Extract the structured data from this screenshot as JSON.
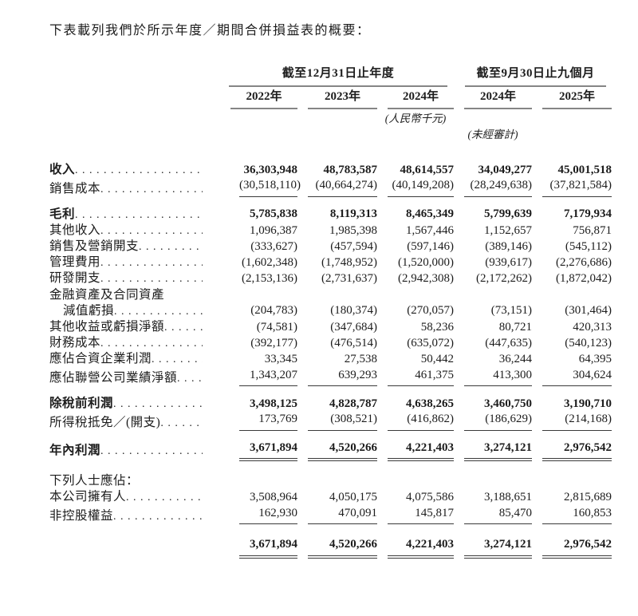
{
  "intro": "下表載列我們於所示年度／期間合併損益表的概要：",
  "table": {
    "col_groups": [
      {
        "label": "截至12月31日止年度",
        "span": 3
      },
      {
        "label": "截至9月30日止九個月",
        "span": 2
      }
    ],
    "year_headers": [
      "2022年",
      "2023年",
      "2024年",
      "2024年",
      "2025年"
    ],
    "notes": {
      "currency": "(人民幣千元)",
      "unaudited": "(未經審計)"
    },
    "rows": [
      {
        "label": "收入",
        "bold": true,
        "values": [
          "36,303,948",
          "48,783,587",
          "48,614,557",
          "34,049,277",
          "45,001,518"
        ]
      },
      {
        "label": "銷售成本",
        "rule": "single",
        "values": [
          "(30,518,110)",
          "(40,664,274)",
          "(40,149,208)",
          "(28,249,638)",
          "(37,821,584)"
        ]
      },
      {
        "label": "毛利",
        "bold": true,
        "values": [
          "5,785,838",
          "8,119,313",
          "8,465,349",
          "5,799,639",
          "7,179,934"
        ]
      },
      {
        "label": "其他收入",
        "values": [
          "1,096,387",
          "1,985,398",
          "1,567,446",
          "1,152,657",
          "756,871"
        ]
      },
      {
        "label": "銷售及營銷開支",
        "values": [
          "(333,627)",
          "(457,594)",
          "(597,146)",
          "(389,146)",
          "(545,112)"
        ]
      },
      {
        "label": "管理費用",
        "values": [
          "(1,602,348)",
          "(1,748,952)",
          "(1,520,000)",
          "(939,617)",
          "(2,276,686)"
        ]
      },
      {
        "label": "研發開支",
        "values": [
          "(2,153,136)",
          "(2,731,637)",
          "(2,942,308)",
          "(2,172,262)",
          "(1,872,042)"
        ]
      },
      {
        "label": "金融資產及合同資產",
        "values": []
      },
      {
        "label": "減值虧損",
        "indent": true,
        "values": [
          "(204,783)",
          "(180,374)",
          "(270,057)",
          "(73,151)",
          "(301,464)"
        ]
      },
      {
        "label": "其他收益或虧損淨額",
        "values": [
          "(74,581)",
          "(347,684)",
          "58,236",
          "80,721",
          "420,313"
        ]
      },
      {
        "label": "財務成本",
        "values": [
          "(392,177)",
          "(476,514)",
          "(635,072)",
          "(447,635)",
          "(540,123)"
        ]
      },
      {
        "label": "應佔合資企業利潤",
        "values": [
          "33,345",
          "27,538",
          "50,442",
          "36,244",
          "64,395"
        ]
      },
      {
        "label": "應佔聯營公司業績淨額",
        "rule": "single",
        "values": [
          "1,343,207",
          "639,293",
          "461,375",
          "413,300",
          "304,624"
        ]
      },
      {
        "label": "除稅前利潤",
        "bold": true,
        "values": [
          "3,498,125",
          "4,828,787",
          "4,638,265",
          "3,460,750",
          "3,190,710"
        ]
      },
      {
        "label": "所得稅抵免／(開支)",
        "rule": "single",
        "values": [
          "173,769",
          "(308,521)",
          "(416,862)",
          "(186,629)",
          "(214,168)"
        ]
      },
      {
        "label": "年內利潤",
        "bold": true,
        "rule": "double",
        "values": [
          "3,671,894",
          "4,520,266",
          "4,221,403",
          "3,274,121",
          "2,976,542"
        ]
      },
      {
        "label": "下列人士應佔：",
        "section": true,
        "values": []
      },
      {
        "label": "本公司擁有人",
        "values": [
          "3,508,964",
          "4,050,175",
          "4,075,586",
          "3,188,651",
          "2,815,689"
        ]
      },
      {
        "label": "非控股權益",
        "rule": "single",
        "values": [
          "162,930",
          "470,091",
          "145,817",
          "85,470",
          "160,853"
        ]
      },
      {
        "label": "",
        "bold": true,
        "rule": "double",
        "values": [
          "3,671,894",
          "4,520,266",
          "4,221,403",
          "3,274,121",
          "2,976,542"
        ]
      }
    ]
  }
}
